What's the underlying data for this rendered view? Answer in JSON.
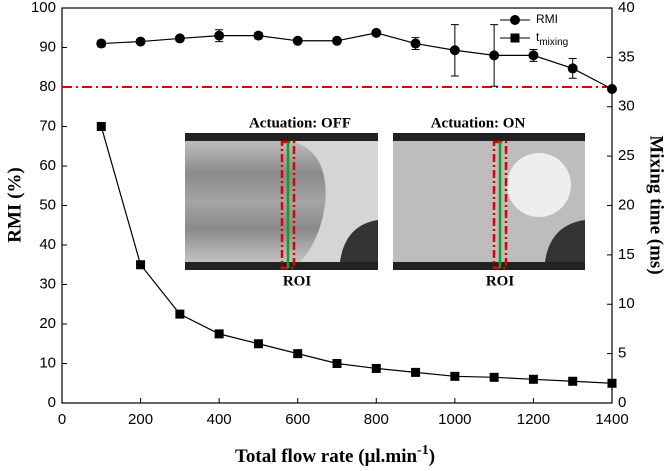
{
  "chart_data": {
    "type": "line",
    "xlabel": "Total flow rate (μl.min",
    "xlabel_sup": "-1",
    "xlabel_end": ")",
    "ylabel": "RMI (%)",
    "y2label": "Mixing time (ms)",
    "x": [
      100,
      200,
      300,
      400,
      500,
      600,
      700,
      800,
      900,
      1000,
      1100,
      1200,
      1300,
      1400
    ],
    "series": [
      {
        "name": "RMI",
        "color": "#000000",
        "marker": "circle",
        "values": [
          91,
          91.5,
          92.3,
          93,
          93,
          91.7,
          91.7,
          93.7,
          91,
          89.3,
          88,
          88,
          84.7,
          79.5
        ],
        "errors": [
          0.8,
          0.5,
          0.6,
          1.5,
          0.8,
          0.6,
          0.6,
          0.6,
          1.5,
          6.5,
          7.8,
          1.5,
          2.5,
          0.5
        ]
      },
      {
        "name": "t",
        "subscript": "mixing",
        "color": "#000000",
        "marker": "square",
        "axis": "y2",
        "values": [
          28,
          14,
          9,
          7,
          6,
          5,
          4,
          3.5,
          3.1,
          2.7,
          2.6,
          2.4,
          2.2,
          2
        ]
      }
    ],
    "reference_line": {
      "value": 80,
      "color": "#e00000"
    },
    "xlim": [
      0,
      1400
    ],
    "xticks": [
      0,
      200,
      400,
      600,
      800,
      1000,
      1200,
      1400
    ],
    "ylim": [
      0,
      100
    ],
    "yticks": [
      0,
      10,
      20,
      30,
      40,
      50,
      60,
      70,
      80,
      90,
      100
    ],
    "y2lim": [
      0,
      40
    ],
    "y2ticks": [
      0,
      5,
      10,
      15,
      20,
      25,
      30,
      35,
      40
    ],
    "legend": "upper right",
    "insets": [
      {
        "title": "Actuation: OFF",
        "label": "ROI"
      },
      {
        "title": "Actuation: ON",
        "label": "ROI"
      }
    ]
  }
}
